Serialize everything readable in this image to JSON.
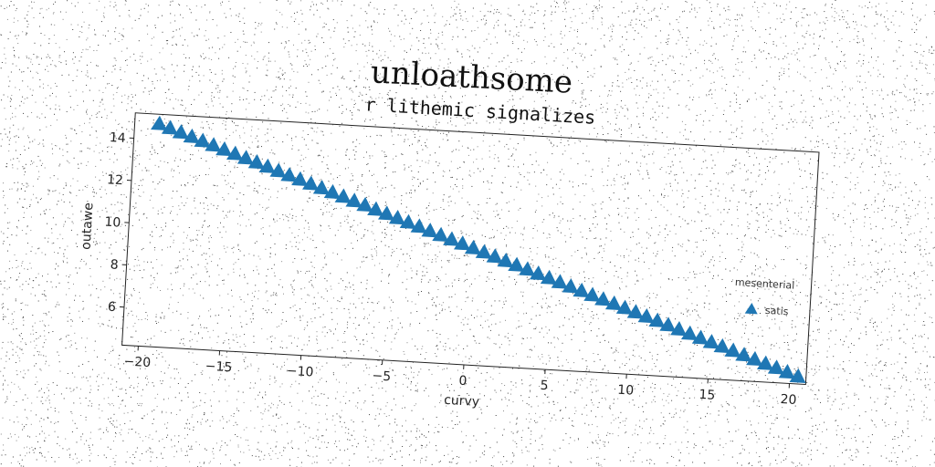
{
  "chart_data": {
    "type": "scatter",
    "suptitle": "unloathsome",
    "title": "r lithemic signalizes",
    "xlabel": "curvy",
    "ylabel": "outawe",
    "xlim": [
      -21,
      21
    ],
    "ylim": [
      4.2,
      15.2
    ],
    "xticks": [
      -20,
      -15,
      -10,
      -5,
      0,
      5,
      10,
      15,
      20
    ],
    "yticks": [
      6,
      8,
      10,
      12,
      14
    ],
    "xtick_labels": [
      "−20",
      "−15",
      "−10",
      "−5",
      "0",
      "5",
      "10",
      "15",
      "20"
    ],
    "ytick_labels": [
      "6",
      "8",
      "10",
      "12",
      "14"
    ],
    "grid": false,
    "legend": {
      "title": "mesenterial",
      "placement": "center-right",
      "entries": [
        "satis"
      ]
    },
    "series": [
      {
        "name": "satis",
        "marker": "triangle-up",
        "color": "#1f77b4",
        "x_start": -19.5,
        "x_end": 20.5,
        "count": 60,
        "y_start": 14.75,
        "y_end": 4.56
      }
    ]
  }
}
